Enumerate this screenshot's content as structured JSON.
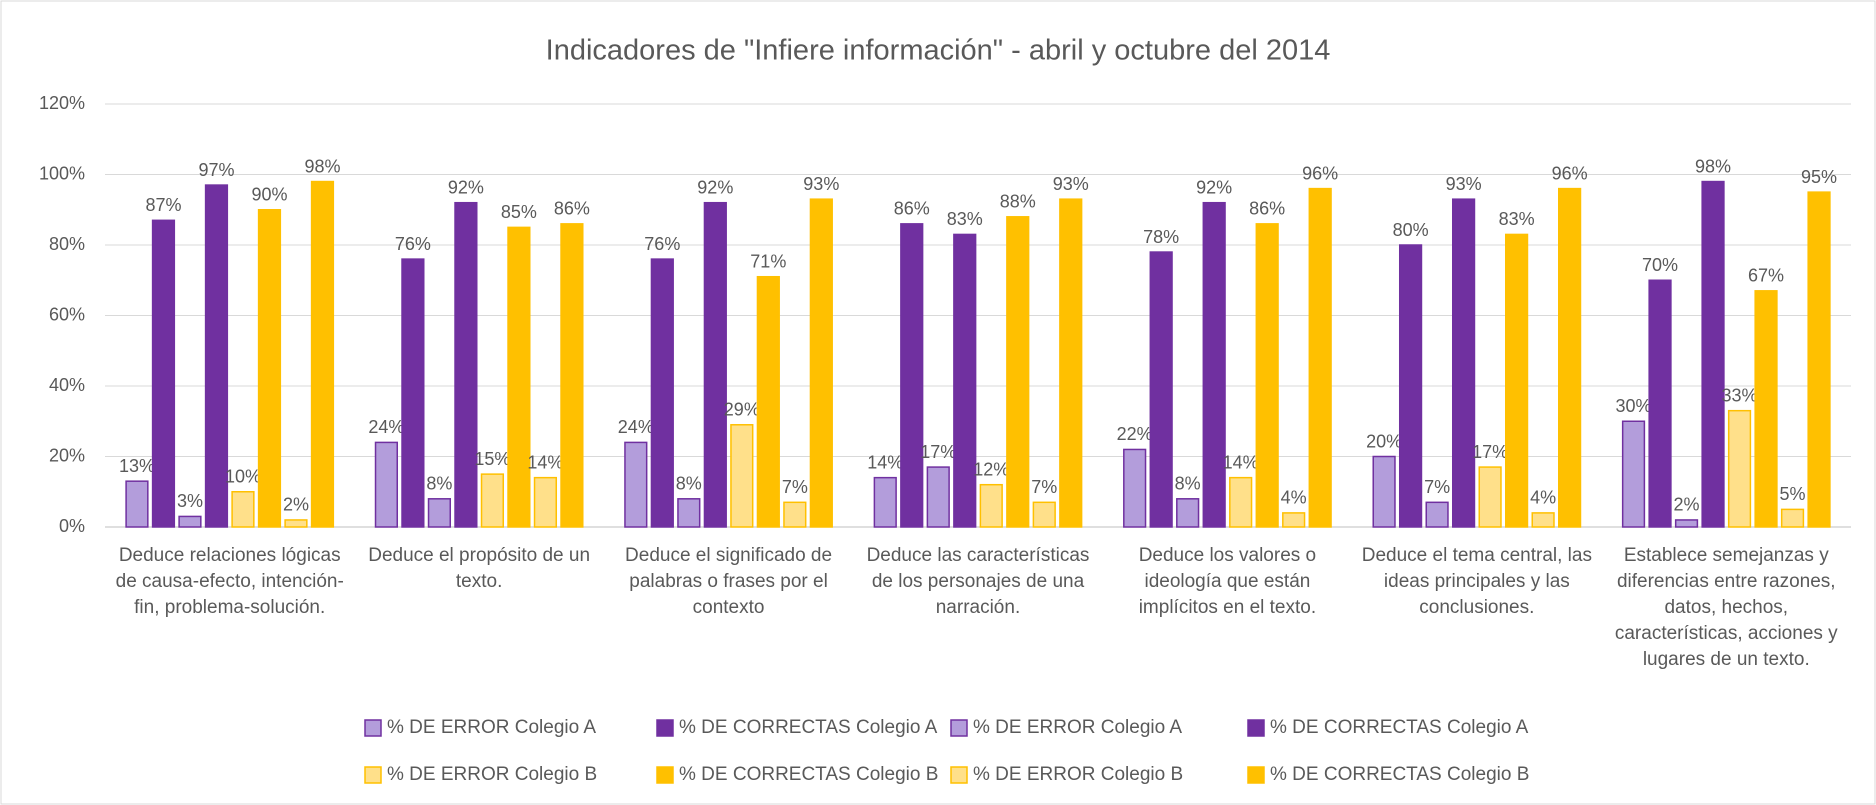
{
  "chart_data": {
    "type": "bar",
    "title": "Indicadores de \"Infiere información\" - abril y octubre del 2014",
    "categories": [
      "Deduce relaciones lógicas de causa-efecto, intención-fin, problema-solución.",
      "Deduce el propósito de un texto.",
      "Deduce el significado de palabras o frases por el contexto",
      "Deduce las características de los personajes de una narración.",
      "Deduce los valores o ideología que están implícitos en el texto.",
      "Deduce el tema central, las ideas principales y las conclusiones.",
      "Establece semejanzas y diferencias entre razones, datos, hechos, características, acciones y lugares de un texto."
    ],
    "series": [
      {
        "name": "% DE ERROR Colegio A",
        "color": "#b39ddb",
        "values": [
          13,
          24,
          24,
          14,
          22,
          20,
          30
        ],
        "value_labels": [
          "13%",
          "24%",
          "24%",
          "14%",
          "22%",
          "20%",
          "30%"
        ]
      },
      {
        "name": "% DE CORRECTAS Colegio A",
        "color": "#7030a0",
        "values": [
          87,
          76,
          76,
          86,
          78,
          80,
          70
        ],
        "value_labels": [
          "87%",
          "76%",
          "76%",
          "86%",
          "78%",
          "80%",
          "70%"
        ]
      },
      {
        "name": "% DE ERROR Colegio A",
        "color": "#b39ddb",
        "values": [
          3,
          8,
          8,
          17,
          8,
          7,
          2
        ],
        "value_labels": [
          "3%",
          "8%",
          "8%",
          "17%",
          "8%",
          "7%",
          "2%"
        ]
      },
      {
        "name": "% DE CORRECTAS Colegio A",
        "color": "#7030a0",
        "values": [
          97,
          92,
          92,
          83,
          92,
          93,
          98
        ],
        "value_labels": [
          "97%",
          "92%",
          "92%",
          "83%",
          "92%",
          "93%",
          "98%"
        ]
      },
      {
        "name": "% DE ERROR Colegio B",
        "color": "#ffe08a",
        "values": [
          10,
          15,
          29,
          12,
          14,
          17,
          33
        ],
        "value_labels": [
          "10%",
          "15%",
          "29%",
          "12%",
          "14%",
          "17%",
          "33%"
        ]
      },
      {
        "name": "% DE CORRECTAS Colegio B",
        "color": "#ffc000",
        "values": [
          90,
          85,
          71,
          88,
          86,
          83,
          67
        ],
        "value_labels": [
          "90%",
          "85%",
          "71%",
          "88%",
          "86%",
          "83%",
          "67%"
        ]
      },
      {
        "name": "% DE ERROR Colegio B",
        "color": "#ffe08a",
        "values": [
          2,
          14,
          7,
          7,
          4,
          4,
          5
        ],
        "value_labels": [
          "2%",
          "14%",
          "7%",
          "7%",
          "4%",
          "4%",
          "5%"
        ]
      },
      {
        "name": "% DE CORRECTAS Colegio B",
        "color": "#ffc000",
        "values": [
          98,
          86,
          93,
          93,
          96,
          96,
          95
        ],
        "value_labels": [
          "98%",
          "86%",
          "93%",
          "93%",
          "96%",
          "96%",
          "95%"
        ]
      }
    ],
    "ylim": [
      0,
      120
    ],
    "yticks": [
      {
        "value": 0,
        "label": "0%"
      },
      {
        "value": 20,
        "label": "20%"
      },
      {
        "value": 40,
        "label": "40%"
      },
      {
        "value": 60,
        "label": "60%"
      },
      {
        "value": 80,
        "label": "80%"
      },
      {
        "value": 100,
        "label": "100%"
      },
      {
        "value": 120,
        "label": "120%"
      }
    ],
    "grid": true,
    "legend": "bottom"
  }
}
